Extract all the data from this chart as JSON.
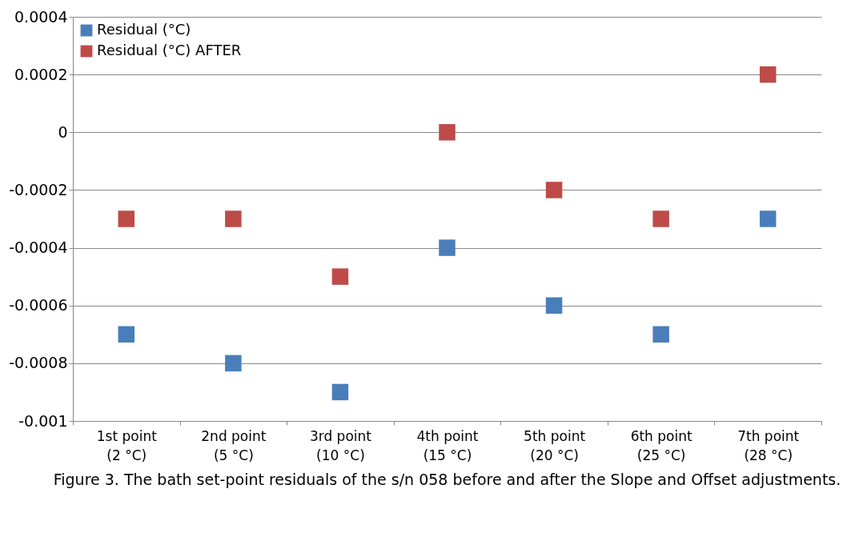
{
  "chart_data": {
    "type": "scatter",
    "categories": [
      "1st point (2  °C)",
      "2nd point (5 °C)",
      "3rd point (10 °C)",
      "4th point (15 °C)",
      "5th point (20 °C)",
      "6th point (25 °C)",
      "7th point (28 °C)"
    ],
    "series": [
      {
        "name": "Residual (°C)",
        "color": "#4a7ebb",
        "values": [
          -0.0007,
          -0.0008,
          -0.0009,
          -0.0004,
          -0.0006,
          -0.0007,
          -0.0003
        ]
      },
      {
        "name": "Residual (°C) AFTER",
        "color": "#be4b48",
        "values": [
          -0.0003,
          -0.0003,
          -0.0005,
          0,
          -0.0002,
          -0.0003,
          0.0002
        ]
      }
    ],
    "ylim": [
      -0.001,
      0.0004
    ],
    "yticks": [
      -0.001,
      -0.0008,
      -0.0006,
      -0.0004,
      -0.0002,
      0,
      0.0002,
      0.0004
    ],
    "grid": "y",
    "legend": "top left",
    "marker": "square",
    "annotations": [
      "Figure 3. The bath set-point residuals of the s/n 058 before and after the Slope and Offset adjustments."
    ]
  }
}
